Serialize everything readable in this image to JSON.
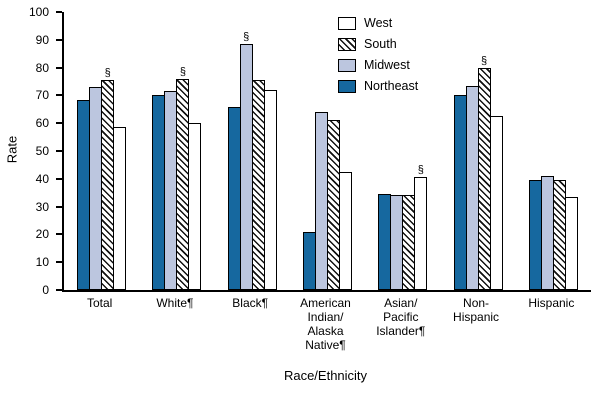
{
  "chart_data": {
    "type": "bar",
    "title": "",
    "xlabel": "Race/Ethnicity",
    "ylabel": "Rate",
    "ylim": [
      0,
      100
    ],
    "yticks": [
      0,
      10,
      20,
      30,
      40,
      50,
      60,
      70,
      80,
      90,
      100
    ],
    "grid": false,
    "categories": [
      "Total",
      "White¶",
      "Black¶",
      "American\nIndian/\nAlaska\nNative¶",
      "Asian/\nPacific\nIslander¶",
      "Non-\nHispanic",
      "Hispanic"
    ],
    "bar_order": [
      "Northeast",
      "Midwest",
      "South",
      "West"
    ],
    "series": [
      {
        "name": "Northeast",
        "values": [
          68.5,
          70,
          66,
          21,
          34.5,
          70,
          39.5
        ]
      },
      {
        "name": "Midwest",
        "values": [
          73,
          71.5,
          88.5,
          64,
          34,
          73.5,
          41
        ]
      },
      {
        "name": "South",
        "values": [
          75.5,
          76,
          75.5,
          61,
          34,
          80,
          39.5
        ]
      },
      {
        "name": "West",
        "values": [
          58.5,
          60,
          72,
          42.5,
          40.5,
          62.5,
          33.5
        ]
      }
    ],
    "colors": {
      "Northeast": "#16689f",
      "Midwest": "#bcc6df",
      "South": "hatch",
      "West": "#ffffff"
    },
    "annotations": [
      {
        "category_index": 0,
        "series": "South",
        "text": "§"
      },
      {
        "category_index": 1,
        "series": "South",
        "text": "§"
      },
      {
        "category_index": 2,
        "series": "Midwest",
        "text": "§"
      },
      {
        "category_index": 4,
        "series": "West",
        "text": "§"
      },
      {
        "category_index": 5,
        "series": "South",
        "text": "§"
      }
    ],
    "legend": {
      "position": "top-center",
      "items": [
        "West",
        "South",
        "Midwest",
        "Northeast"
      ]
    }
  }
}
